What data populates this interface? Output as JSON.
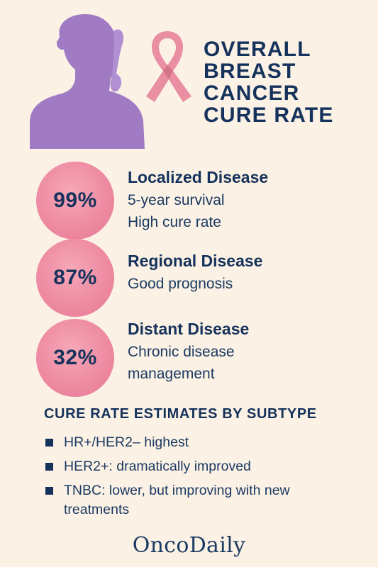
{
  "title": {
    "lines": [
      "OVERALL",
      "BREAST",
      "CANCER",
      "CURE RATE"
    ]
  },
  "stages": [
    {
      "percent": "99%",
      "name": "Localized Disease",
      "details": [
        "5-year survival",
        "High cure rate"
      ]
    },
    {
      "percent": "87%",
      "name": "Regional Disease",
      "details": [
        "Good prognosis"
      ]
    },
    {
      "percent": "32%",
      "name": "Distant Disease",
      "details": [
        "Chronic disease",
        "management"
      ]
    }
  ],
  "subtypes": {
    "heading": "CURE RATE ESTIMATES BY SUBTYPE",
    "items": [
      {
        "text": "HR+/HER2– highest"
      },
      {
        "text": "HER2+: dramatically improved"
      },
      {
        "text": "TNBC: lower, but improving with new treatments"
      }
    ]
  },
  "brand": "OncoDaily",
  "icons": {
    "woman": "woman-silhouette-icon",
    "ribbon": "awareness-ribbon-icon"
  },
  "colors": {
    "background": "#fbf1e4",
    "navy": "#15325c",
    "pink": "#ee8ba2",
    "purple": "#a07bc4"
  }
}
